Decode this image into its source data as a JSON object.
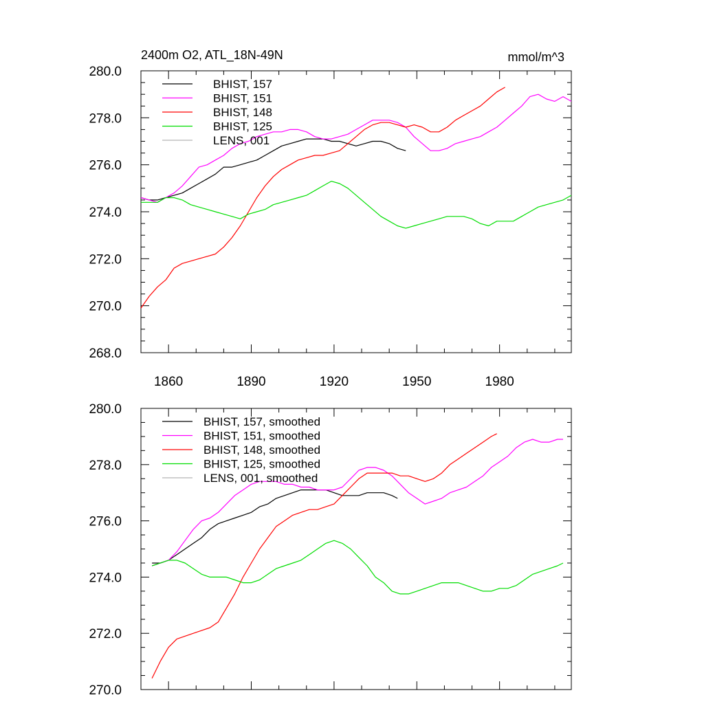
{
  "chart_data": [
    {
      "type": "line",
      "title": "2400m O2, ATL_18N-49N",
      "unit_label": "mmol/m^3",
      "xlim": [
        1850,
        2006
      ],
      "ylim": [
        268,
        280
      ],
      "x_ticks": [
        1860,
        1890,
        1920,
        1950,
        1980
      ],
      "y_ticks": [
        268.0,
        270.0,
        272.0,
        274.0,
        276.0,
        278.0,
        280.0
      ],
      "legend": "top-left",
      "series": [
        {
          "name": "BHIST, 157",
          "color": "#000000",
          "x": [
            1850,
            1853,
            1856,
            1859,
            1862,
            1865,
            1868,
            1871,
            1874,
            1877,
            1880,
            1883,
            1886,
            1889,
            1892,
            1895,
            1898,
            1901,
            1904,
            1907,
            1910,
            1913,
            1916,
            1919,
            1922,
            1925,
            1928,
            1931,
            1934,
            1937,
            1940,
            1943,
            1946
          ],
          "y": [
            274.6,
            274.5,
            274.5,
            274.6,
            274.7,
            274.8,
            275.0,
            275.2,
            275.4,
            275.6,
            275.9,
            275.9,
            276.0,
            276.1,
            276.2,
            276.4,
            276.6,
            276.8,
            276.9,
            277.0,
            277.1,
            277.1,
            277.1,
            277.0,
            277.0,
            276.9,
            276.8,
            276.9,
            277.0,
            277.0,
            276.9,
            276.7,
            276.6
          ]
        },
        {
          "name": "BHIST, 151",
          "color": "#ff00ff",
          "x": [
            1850,
            1853,
            1856,
            1859,
            1862,
            1865,
            1868,
            1871,
            1874,
            1877,
            1880,
            1883,
            1886,
            1889,
            1892,
            1895,
            1898,
            1901,
            1904,
            1907,
            1910,
            1913,
            1916,
            1919,
            1922,
            1925,
            1928,
            1931,
            1934,
            1937,
            1940,
            1943,
            1946,
            1949,
            1952,
            1955,
            1958,
            1961,
            1964,
            1967,
            1970,
            1973,
            1976,
            1979,
            1982,
            1985,
            1988,
            1991,
            1994,
            1997,
            2000,
            2003,
            2006
          ],
          "y": [
            274.6,
            274.5,
            274.4,
            274.6,
            274.8,
            275.1,
            275.5,
            275.9,
            276.0,
            276.2,
            276.4,
            276.7,
            276.9,
            277.0,
            277.2,
            277.3,
            277.4,
            277.4,
            277.5,
            277.5,
            277.4,
            277.2,
            277.1,
            277.1,
            277.2,
            277.3,
            277.5,
            277.7,
            277.9,
            277.9,
            277.9,
            277.8,
            277.6,
            277.2,
            276.9,
            276.6,
            276.6,
            276.7,
            276.9,
            277.0,
            277.1,
            277.2,
            277.4,
            277.6,
            277.9,
            278.2,
            278.5,
            278.9,
            279.0,
            278.8,
            278.7,
            278.9,
            278.7
          ]
        },
        {
          "name": "BHIST, 148",
          "color": "#ff0000",
          "x": [
            1850,
            1853,
            1856,
            1859,
            1862,
            1865,
            1868,
            1871,
            1874,
            1877,
            1880,
            1883,
            1886,
            1889,
            1892,
            1895,
            1898,
            1901,
            1904,
            1907,
            1910,
            1913,
            1916,
            1919,
            1922,
            1925,
            1928,
            1931,
            1934,
            1937,
            1940,
            1943,
            1946,
            1949,
            1952,
            1955,
            1958,
            1961,
            1964,
            1967,
            1970,
            1973,
            1976,
            1979,
            1982
          ],
          "y": [
            269.9,
            270.4,
            270.8,
            271.1,
            271.6,
            271.8,
            271.9,
            272.0,
            272.1,
            272.2,
            272.5,
            272.9,
            273.4,
            274.0,
            274.6,
            275.1,
            275.5,
            275.8,
            276.0,
            276.2,
            276.3,
            276.4,
            276.4,
            276.5,
            276.6,
            276.9,
            277.2,
            277.5,
            277.7,
            277.8,
            277.8,
            277.7,
            277.6,
            277.7,
            277.6,
            277.4,
            277.4,
            277.6,
            277.9,
            278.1,
            278.3,
            278.5,
            278.8,
            279.1,
            279.3
          ]
        },
        {
          "name": "BHIST, 125",
          "color": "#00dd00",
          "x": [
            1850,
            1853,
            1856,
            1859,
            1862,
            1865,
            1868,
            1871,
            1874,
            1877,
            1880,
            1883,
            1886,
            1889,
            1892,
            1895,
            1898,
            1901,
            1904,
            1907,
            1910,
            1913,
            1916,
            1919,
            1922,
            1925,
            1928,
            1931,
            1934,
            1937,
            1940,
            1943,
            1946,
            1949,
            1952,
            1955,
            1958,
            1961,
            1964,
            1967,
            1970,
            1973,
            1976,
            1979,
            1982,
            1985,
            1988,
            1991,
            1994,
            1997,
            2000,
            2003,
            2006
          ],
          "y": [
            274.4,
            274.4,
            274.4,
            274.6,
            274.6,
            274.5,
            274.3,
            274.2,
            274.1,
            274.0,
            273.9,
            273.8,
            273.7,
            273.9,
            274.0,
            274.1,
            274.3,
            274.4,
            274.5,
            274.6,
            274.7,
            274.9,
            275.1,
            275.3,
            275.2,
            275.0,
            274.7,
            274.4,
            274.1,
            273.8,
            273.6,
            273.4,
            273.3,
            273.4,
            273.5,
            273.6,
            273.7,
            273.8,
            273.8,
            273.8,
            273.7,
            273.5,
            273.4,
            273.6,
            273.6,
            273.6,
            273.8,
            274.0,
            274.2,
            274.3,
            274.4,
            274.5,
            274.7
          ]
        },
        {
          "name": "LENS, 001",
          "color": "#b4b4b4",
          "x": [],
          "y": []
        }
      ]
    },
    {
      "type": "line",
      "xlim": [
        1850,
        2006
      ],
      "ylim": [
        270,
        280
      ],
      "x_ticks": [
        1860,
        1890,
        1920,
        1950,
        1980
      ],
      "y_ticks": [
        270.0,
        272.0,
        274.0,
        276.0,
        278.0,
        280.0
      ],
      "legend": "top-left",
      "series": [
        {
          "name": "BHIST, 157, smoothed",
          "color": "#000000",
          "x": [
            1854,
            1857,
            1860,
            1863,
            1866,
            1869,
            1872,
            1875,
            1878,
            1881,
            1884,
            1887,
            1890,
            1893,
            1896,
            1899,
            1902,
            1905,
            1908,
            1911,
            1914,
            1917,
            1920,
            1923,
            1926,
            1929,
            1932,
            1935,
            1938,
            1941,
            1943
          ],
          "y": [
            274.5,
            274.5,
            274.6,
            274.8,
            275.0,
            275.2,
            275.4,
            275.7,
            275.9,
            276.0,
            276.1,
            276.2,
            276.3,
            276.5,
            276.6,
            276.8,
            276.9,
            277.0,
            277.1,
            277.1,
            277.1,
            277.1,
            277.0,
            276.9,
            276.9,
            276.9,
            277.0,
            277.0,
            277.0,
            276.9,
            276.8
          ]
        },
        {
          "name": "BHIST, 151, smoothed",
          "color": "#ff00ff",
          "x": [
            1854,
            1857,
            1860,
            1863,
            1866,
            1869,
            1872,
            1875,
            1878,
            1881,
            1884,
            1887,
            1890,
            1893,
            1896,
            1899,
            1902,
            1905,
            1908,
            1911,
            1914,
            1917,
            1920,
            1923,
            1926,
            1929,
            1932,
            1935,
            1938,
            1941,
            1944,
            1947,
            1950,
            1953,
            1956,
            1959,
            1962,
            1965,
            1968,
            1971,
            1974,
            1977,
            1980,
            1983,
            1986,
            1989,
            1992,
            1995,
            1998,
            2001,
            2003
          ],
          "y": [
            274.4,
            274.5,
            274.6,
            274.9,
            275.3,
            275.7,
            276.0,
            276.1,
            276.3,
            276.6,
            276.9,
            277.1,
            277.3,
            277.4,
            277.4,
            277.4,
            277.3,
            277.3,
            277.2,
            277.2,
            277.1,
            277.1,
            277.1,
            277.2,
            277.5,
            277.8,
            277.9,
            277.9,
            277.8,
            277.6,
            277.3,
            277.0,
            276.8,
            276.6,
            276.7,
            276.8,
            277.0,
            277.1,
            277.2,
            277.4,
            277.6,
            277.9,
            278.1,
            278.3,
            278.6,
            278.8,
            278.9,
            278.8,
            278.8,
            278.9,
            278.9
          ]
        },
        {
          "name": "BHIST, 148, smoothed",
          "color": "#ff0000",
          "x": [
            1854,
            1857,
            1860,
            1863,
            1866,
            1869,
            1872,
            1875,
            1878,
            1881,
            1884,
            1887,
            1890,
            1893,
            1896,
            1899,
            1902,
            1905,
            1908,
            1911,
            1914,
            1917,
            1920,
            1923,
            1926,
            1929,
            1932,
            1935,
            1938,
            1941,
            1944,
            1947,
            1950,
            1953,
            1956,
            1959,
            1962,
            1965,
            1968,
            1971,
            1974,
            1977,
            1979
          ],
          "y": [
            270.4,
            271.0,
            271.5,
            271.8,
            271.9,
            272.0,
            272.1,
            272.2,
            272.4,
            272.9,
            273.4,
            274.0,
            274.5,
            275.0,
            275.4,
            275.8,
            276.0,
            276.2,
            276.3,
            276.4,
            276.4,
            276.5,
            276.6,
            276.9,
            277.2,
            277.5,
            277.7,
            277.7,
            277.7,
            277.7,
            277.6,
            277.6,
            277.5,
            277.4,
            277.5,
            277.7,
            278.0,
            278.2,
            278.4,
            278.6,
            278.8,
            279.0,
            279.1
          ]
        },
        {
          "name": "BHIST, 125, smoothed",
          "color": "#00dd00",
          "x": [
            1854,
            1857,
            1860,
            1863,
            1866,
            1869,
            1872,
            1875,
            1878,
            1881,
            1884,
            1887,
            1890,
            1893,
            1896,
            1899,
            1902,
            1905,
            1908,
            1911,
            1914,
            1917,
            1920,
            1923,
            1926,
            1929,
            1932,
            1935,
            1938,
            1941,
            1944,
            1947,
            1950,
            1953,
            1956,
            1959,
            1962,
            1965,
            1968,
            1971,
            1974,
            1977,
            1980,
            1983,
            1986,
            1989,
            1992,
            1995,
            1998,
            2001,
            2003
          ],
          "y": [
            274.4,
            274.5,
            274.6,
            274.6,
            274.5,
            274.3,
            274.1,
            274.0,
            274.0,
            274.0,
            273.9,
            273.8,
            273.8,
            273.9,
            274.1,
            274.3,
            274.4,
            274.5,
            274.6,
            274.8,
            275.0,
            275.2,
            275.3,
            275.2,
            275.0,
            274.7,
            274.4,
            274.0,
            273.8,
            273.5,
            273.4,
            273.4,
            273.5,
            273.6,
            273.7,
            273.8,
            273.8,
            273.8,
            273.7,
            273.6,
            273.5,
            273.5,
            273.6,
            273.6,
            273.7,
            273.9,
            274.1,
            274.2,
            274.3,
            274.4,
            274.5
          ]
        },
        {
          "name": "LENS, 001, smoothed",
          "color": "#b4b4b4",
          "x": [],
          "y": []
        }
      ]
    }
  ]
}
